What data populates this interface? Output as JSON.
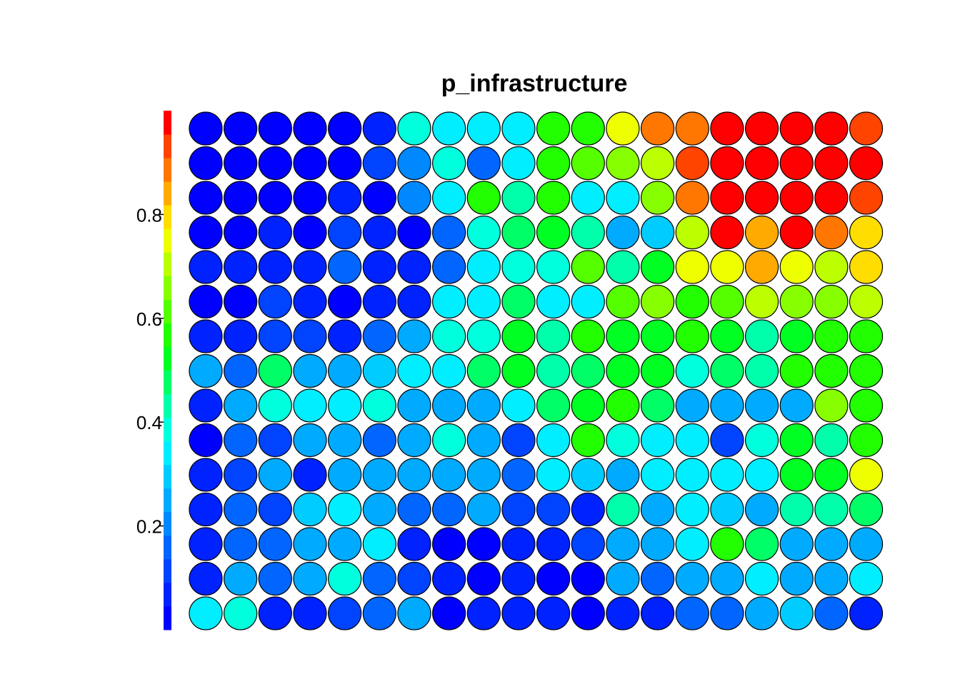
{
  "chart_data": {
    "type": "heatmap",
    "title": "p_infrastructure",
    "xlabel": "",
    "ylabel": "",
    "grid": false,
    "legend": "left colorbar",
    "colorbar": {
      "range": [
        0,
        1
      ],
      "ticks": [
        0.2,
        0.4,
        0.6,
        0.8
      ],
      "tick_labels": [
        "0.2",
        "0.4",
        "0.6",
        "0.8"
      ],
      "colors": [
        "#0000ff",
        "#0022ff",
        "#0044ff",
        "#0066ff",
        "#0088ff",
        "#00aaff",
        "#00ccff",
        "#00eeff",
        "#00ffdd",
        "#00ffaa",
        "#00ff66",
        "#00ff22",
        "#22ff00",
        "#55ff00",
        "#88ff00",
        "#bbff00",
        "#eeff00",
        "#ffdd00",
        "#ffaa00",
        "#ff7700",
        "#ff4400",
        "#ff0000"
      ]
    },
    "rows": 15,
    "cols": 20,
    "values": [
      [
        0.0,
        0.01,
        0.02,
        0.03,
        0.01,
        0.08,
        0.4,
        0.32,
        0.33,
        0.35,
        0.58,
        0.57,
        0.75,
        0.88,
        0.9,
        0.97,
        0.97,
        0.97,
        0.97,
        0.92
      ],
      [
        0.03,
        0.02,
        0.03,
        0.02,
        0.04,
        0.1,
        0.2,
        0.4,
        0.16,
        0.32,
        0.57,
        0.62,
        0.65,
        0.7,
        0.92,
        0.97,
        0.97,
        0.97,
        0.97,
        0.97
      ],
      [
        0.03,
        0.02,
        0.03,
        0.02,
        0.07,
        0.02,
        0.2,
        0.34,
        0.56,
        0.43,
        0.58,
        0.36,
        0.36,
        0.66,
        0.88,
        0.97,
        0.97,
        0.97,
        0.97,
        0.92
      ],
      [
        0.02,
        0.02,
        0.06,
        0.01,
        0.12,
        0.06,
        0.01,
        0.18,
        0.38,
        0.47,
        0.51,
        0.43,
        0.25,
        0.3,
        0.69,
        0.98,
        0.85,
        0.98,
        0.88,
        0.8
      ],
      [
        0.08,
        0.07,
        0.08,
        0.07,
        0.14,
        0.09,
        0.07,
        0.18,
        0.33,
        0.38,
        0.38,
        0.62,
        0.43,
        0.52,
        0.75,
        0.75,
        0.84,
        0.76,
        0.7,
        0.8
      ],
      [
        0.02,
        0.01,
        0.12,
        0.08,
        0.01,
        0.07,
        0.06,
        0.32,
        0.32,
        0.47,
        0.33,
        0.35,
        0.63,
        0.64,
        0.57,
        0.61,
        0.69,
        0.64,
        0.66,
        0.7
      ],
      [
        0.08,
        0.07,
        0.12,
        0.12,
        0.07,
        0.14,
        0.24,
        0.38,
        0.38,
        0.52,
        0.42,
        0.55,
        0.52,
        0.52,
        0.57,
        0.5,
        0.45,
        0.53,
        0.56,
        0.55
      ],
      [
        0.24,
        0.18,
        0.47,
        0.25,
        0.24,
        0.3,
        0.33,
        0.33,
        0.48,
        0.52,
        0.43,
        0.47,
        0.52,
        0.5,
        0.38,
        0.46,
        0.43,
        0.59,
        0.56,
        0.58
      ],
      [
        0.07,
        0.24,
        0.38,
        0.32,
        0.34,
        0.38,
        0.26,
        0.26,
        0.26,
        0.33,
        0.48,
        0.53,
        0.55,
        0.47,
        0.24,
        0.26,
        0.25,
        0.24,
        0.64,
        0.55
      ],
      [
        0.01,
        0.14,
        0.13,
        0.25,
        0.24,
        0.17,
        0.25,
        0.38,
        0.23,
        0.12,
        0.33,
        0.56,
        0.38,
        0.36,
        0.32,
        0.1,
        0.38,
        0.52,
        0.44,
        0.55
      ],
      [
        0.07,
        0.13,
        0.23,
        0.07,
        0.25,
        0.24,
        0.23,
        0.24,
        0.23,
        0.14,
        0.36,
        0.31,
        0.25,
        0.32,
        0.36,
        0.33,
        0.36,
        0.51,
        0.54,
        0.73
      ],
      [
        0.07,
        0.14,
        0.13,
        0.31,
        0.32,
        0.26,
        0.15,
        0.16,
        0.26,
        0.13,
        0.12,
        0.06,
        0.42,
        0.25,
        0.32,
        0.3,
        0.26,
        0.41,
        0.42,
        0.47
      ],
      [
        0.07,
        0.14,
        0.14,
        0.23,
        0.24,
        0.32,
        0.06,
        0.04,
        0.01,
        0.05,
        0.06,
        0.13,
        0.24,
        0.24,
        0.36,
        0.56,
        0.46,
        0.24,
        0.25,
        0.26
      ],
      [
        0.07,
        0.23,
        0.14,
        0.24,
        0.38,
        0.14,
        0.11,
        0.05,
        0.01,
        0.05,
        0.04,
        0.0,
        0.25,
        0.15,
        0.24,
        0.25,
        0.36,
        0.25,
        0.26,
        0.32
      ],
      [
        0.32,
        0.38,
        0.07,
        0.07,
        0.12,
        0.14,
        0.23,
        0.02,
        0.06,
        0.07,
        0.07,
        0.01,
        0.06,
        0.08,
        0.14,
        0.16,
        0.24,
        0.31,
        0.14,
        0.08
      ]
    ]
  }
}
